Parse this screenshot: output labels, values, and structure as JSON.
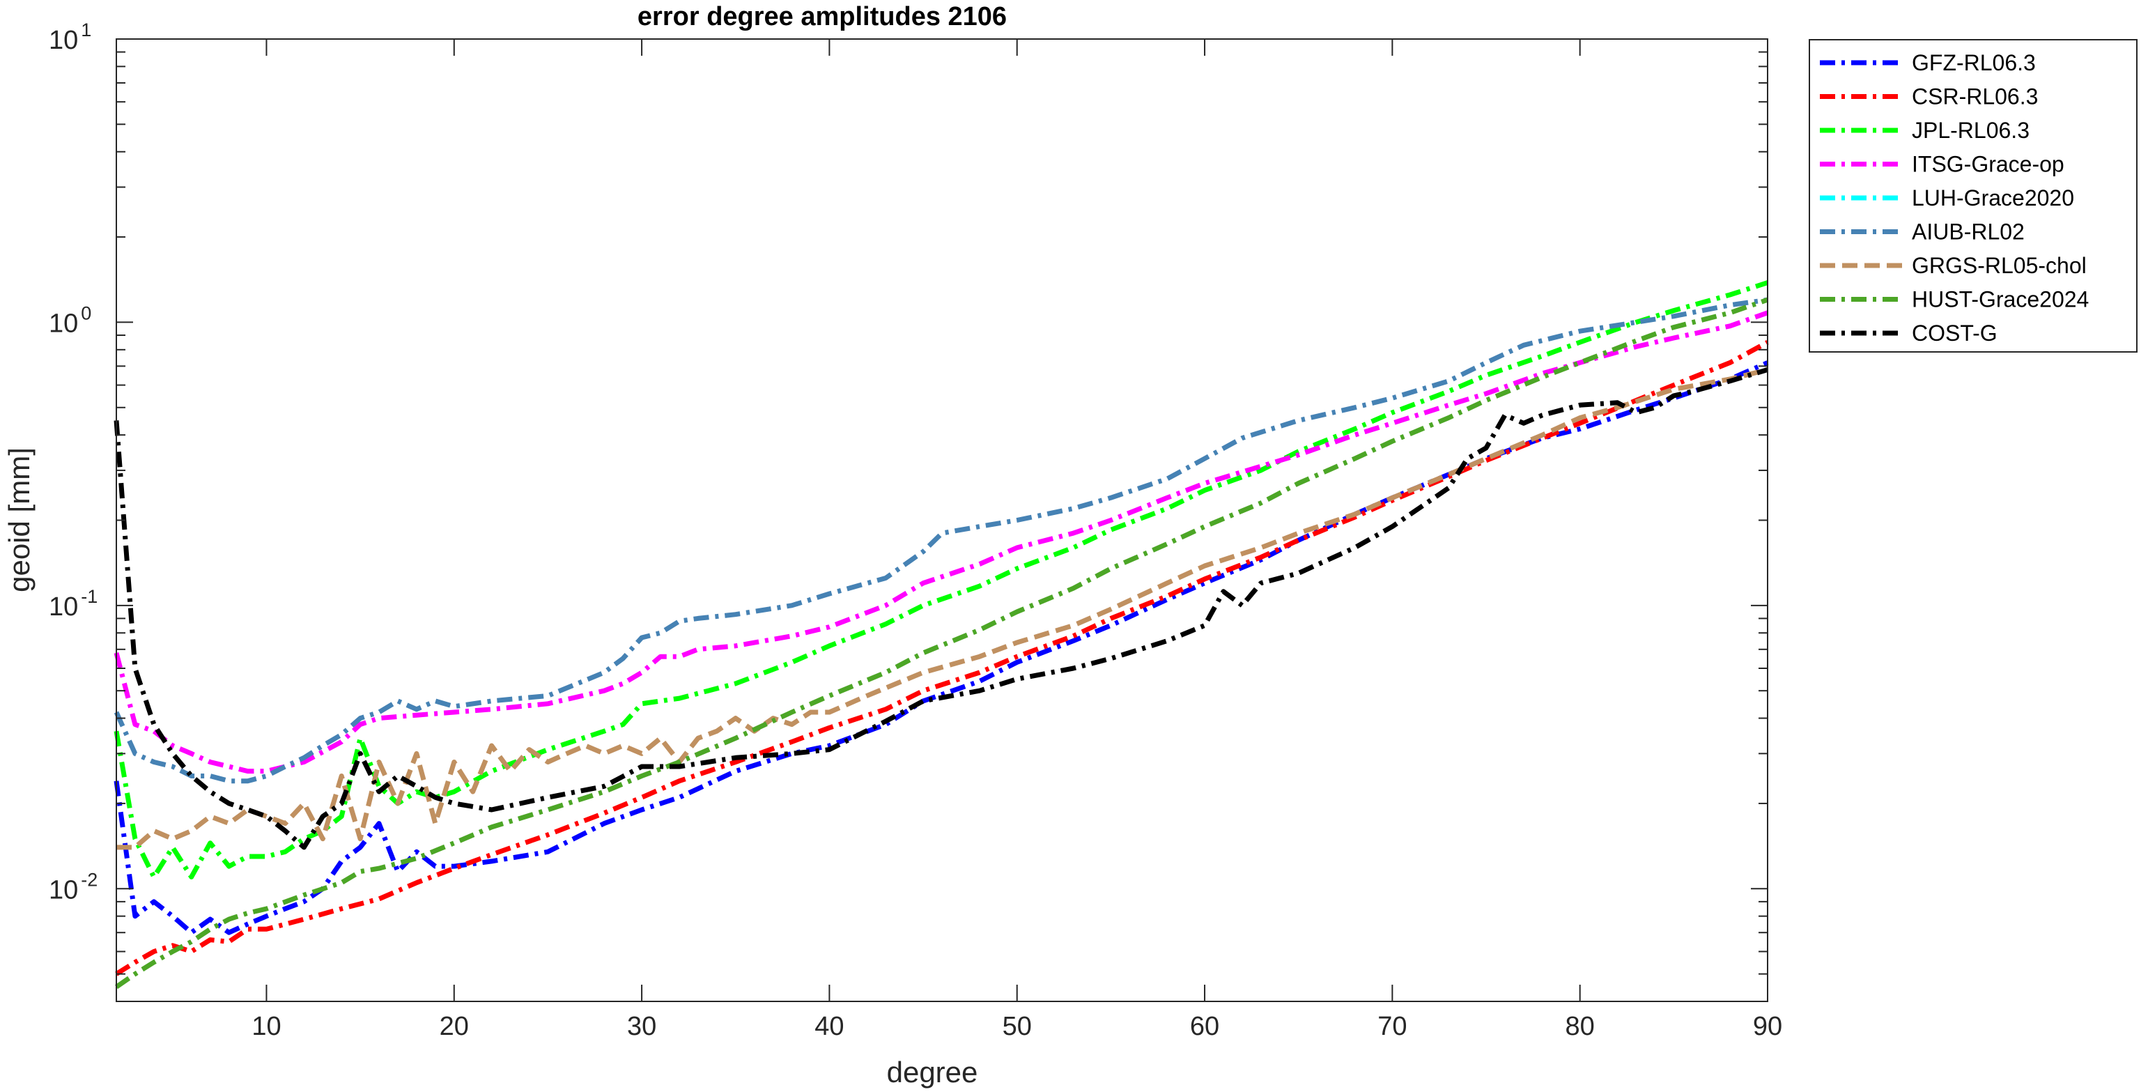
{
  "chart_data": {
    "type": "line",
    "title": "error degree amplitudes 2106",
    "xlabel": "degree",
    "ylabel": "geoid [mm]",
    "xlim": [
      2,
      90
    ],
    "ylim": [
      0.004,
      10
    ],
    "yscale": "log",
    "xticks": [
      10,
      20,
      30,
      40,
      50,
      60,
      70,
      80,
      90
    ],
    "yticks": [
      {
        "value": 0.01,
        "base": "10",
        "exp": "-2"
      },
      {
        "value": 0.1,
        "base": "10",
        "exp": "-1"
      },
      {
        "value": 1,
        "base": "10",
        "exp": "0"
      },
      {
        "value": 10,
        "base": "10",
        "exp": "1"
      }
    ],
    "grid": false,
    "legend_position": "outside-top-right",
    "series": [
      {
        "name": "GFZ-RL06.3",
        "color": "#0000ff",
        "dash": "dashdot",
        "x": [
          2,
          3,
          4,
          5,
          6,
          7,
          8,
          9,
          10,
          11,
          12,
          13,
          14,
          15,
          16,
          17,
          18,
          19,
          20,
          22,
          25,
          28,
          30,
          32,
          35,
          38,
          40,
          43,
          45,
          48,
          50,
          53,
          55,
          58,
          60,
          63,
          65,
          68,
          70,
          73,
          75,
          78,
          80,
          83,
          85,
          88,
          90
        ],
        "y": [
          0.024,
          0.008,
          0.009,
          0.008,
          0.007,
          0.0078,
          0.007,
          0.0075,
          0.008,
          0.0085,
          0.009,
          0.01,
          0.0125,
          0.014,
          0.017,
          0.0115,
          0.0135,
          0.012,
          0.012,
          0.0125,
          0.0135,
          0.017,
          0.019,
          0.021,
          0.026,
          0.03,
          0.032,
          0.038,
          0.046,
          0.054,
          0.063,
          0.075,
          0.085,
          0.105,
          0.12,
          0.145,
          0.17,
          0.21,
          0.24,
          0.29,
          0.33,
          0.39,
          0.42,
          0.49,
          0.54,
          0.63,
          0.72
        ]
      },
      {
        "name": "CSR-RL06.3",
        "color": "#ff0000",
        "dash": "dashdot",
        "x": [
          2,
          3,
          4,
          5,
          6,
          7,
          8,
          9,
          10,
          12,
          14,
          16,
          18,
          20,
          22,
          25,
          28,
          30,
          32,
          35,
          38,
          40,
          43,
          45,
          48,
          50,
          53,
          55,
          58,
          60,
          63,
          65,
          68,
          70,
          73,
          75,
          78,
          80,
          83,
          85,
          88,
          90
        ],
        "y": [
          0.005,
          0.0055,
          0.006,
          0.0063,
          0.006,
          0.0066,
          0.0065,
          0.0072,
          0.0072,
          0.0078,
          0.0085,
          0.0092,
          0.0105,
          0.0118,
          0.0132,
          0.0155,
          0.0185,
          0.021,
          0.024,
          0.028,
          0.033,
          0.037,
          0.043,
          0.05,
          0.058,
          0.066,
          0.078,
          0.09,
          0.108,
          0.124,
          0.148,
          0.17,
          0.205,
          0.235,
          0.285,
          0.325,
          0.39,
          0.44,
          0.53,
          0.6,
          0.72,
          0.85
        ]
      },
      {
        "name": "JPL-RL06.3",
        "color": "#00ff00",
        "dash": "dashdot",
        "x": [
          2,
          3,
          4,
          5,
          6,
          7,
          8,
          9,
          10,
          11,
          12,
          13,
          14,
          15,
          16,
          17,
          18,
          19,
          20,
          22,
          25,
          28,
          29,
          30,
          32,
          35,
          38,
          40,
          43,
          45,
          48,
          50,
          53,
          55,
          58,
          60,
          63,
          65,
          68,
          70,
          73,
          75,
          78,
          80,
          83,
          85,
          88,
          90
        ],
        "y": [
          0.036,
          0.015,
          0.011,
          0.014,
          0.011,
          0.0145,
          0.012,
          0.013,
          0.013,
          0.0135,
          0.015,
          0.016,
          0.018,
          0.034,
          0.023,
          0.02,
          0.022,
          0.021,
          0.022,
          0.026,
          0.031,
          0.036,
          0.038,
          0.045,
          0.047,
          0.053,
          0.063,
          0.072,
          0.086,
          0.1,
          0.117,
          0.135,
          0.16,
          0.185,
          0.22,
          0.255,
          0.3,
          0.35,
          0.42,
          0.48,
          0.57,
          0.65,
          0.76,
          0.85,
          1.0,
          1.1,
          1.25,
          1.38
        ]
      },
      {
        "name": "ITSG-Grace-op",
        "color": "#ff00ff",
        "dash": "dashdot",
        "x": [
          2,
          3,
          4,
          5,
          6,
          7,
          8,
          9,
          10,
          12,
          14,
          15,
          16,
          18,
          20,
          22,
          25,
          28,
          29,
          30,
          31,
          32,
          33,
          35,
          38,
          40,
          43,
          45,
          48,
          50,
          53,
          55,
          58,
          60,
          63,
          65,
          68,
          70,
          73,
          75,
          78,
          80,
          83,
          85,
          88,
          90
        ],
        "y": [
          0.068,
          0.038,
          0.036,
          0.032,
          0.03,
          0.028,
          0.027,
          0.026,
          0.026,
          0.028,
          0.033,
          0.038,
          0.04,
          0.041,
          0.042,
          0.043,
          0.045,
          0.05,
          0.053,
          0.058,
          0.066,
          0.066,
          0.07,
          0.072,
          0.078,
          0.084,
          0.1,
          0.12,
          0.14,
          0.16,
          0.18,
          0.2,
          0.24,
          0.27,
          0.31,
          0.34,
          0.4,
          0.44,
          0.51,
          0.56,
          0.66,
          0.72,
          0.82,
          0.88,
          0.97,
          1.08
        ]
      },
      {
        "name": "LUH-Grace2020",
        "color": "#00ffff",
        "dash": "dashdot",
        "x": [],
        "y": []
      },
      {
        "name": "AIUB-RL02",
        "color": "#4682b4",
        "dash": "dashdot",
        "x": [
          2,
          3,
          4,
          5,
          6,
          7,
          8,
          9,
          10,
          11,
          12,
          13,
          14,
          15,
          16,
          17,
          18,
          19,
          20,
          22,
          25,
          28,
          29,
          30,
          31,
          32,
          33,
          35,
          38,
          40,
          43,
          45,
          46,
          48,
          50,
          53,
          55,
          58,
          60,
          62,
          65,
          68,
          70,
          73,
          75,
          77,
          80,
          83,
          85,
          88,
          90
        ],
        "y": [
          0.042,
          0.03,
          0.028,
          0.027,
          0.025,
          0.025,
          0.024,
          0.024,
          0.025,
          0.027,
          0.029,
          0.032,
          0.035,
          0.04,
          0.042,
          0.046,
          0.043,
          0.046,
          0.044,
          0.046,
          0.048,
          0.058,
          0.065,
          0.077,
          0.08,
          0.088,
          0.09,
          0.093,
          0.1,
          0.11,
          0.125,
          0.155,
          0.18,
          0.19,
          0.2,
          0.22,
          0.24,
          0.28,
          0.33,
          0.39,
          0.45,
          0.5,
          0.54,
          0.62,
          0.72,
          0.83,
          0.93,
          1.0,
          1.05,
          1.15,
          1.2
        ]
      },
      {
        "name": "GRGS-RL05-chol",
        "color": "#c09060",
        "dash": "dash",
        "x": [
          2,
          3,
          4,
          5,
          6,
          7,
          8,
          9,
          10,
          11,
          12,
          13,
          14,
          15,
          16,
          17,
          18,
          19,
          20,
          21,
          22,
          23,
          24,
          25,
          26,
          27,
          28,
          29,
          30,
          31,
          32,
          33,
          34,
          35,
          36,
          37,
          38,
          39,
          40,
          42,
          45,
          48,
          50,
          53,
          55,
          58,
          60,
          63,
          65,
          68,
          70,
          73,
          75,
          78,
          80,
          82,
          85,
          88,
          90
        ],
        "y": [
          0.014,
          0.014,
          0.016,
          0.015,
          0.016,
          0.018,
          0.017,
          0.019,
          0.018,
          0.017,
          0.02,
          0.015,
          0.025,
          0.015,
          0.028,
          0.02,
          0.03,
          0.017,
          0.028,
          0.022,
          0.032,
          0.026,
          0.031,
          0.028,
          0.03,
          0.032,
          0.03,
          0.032,
          0.03,
          0.034,
          0.028,
          0.034,
          0.036,
          0.04,
          0.036,
          0.04,
          0.038,
          0.042,
          0.042,
          0.048,
          0.058,
          0.066,
          0.074,
          0.085,
          0.097,
          0.12,
          0.138,
          0.16,
          0.18,
          0.21,
          0.24,
          0.29,
          0.33,
          0.4,
          0.46,
          0.5,
          0.58,
          0.63,
          0.68
        ]
      },
      {
        "name": "HUST-Grace2024",
        "color": "#4ca626",
        "dash": "dashdot",
        "x": [
          2,
          3,
          4,
          5,
          6,
          7,
          8,
          9,
          10,
          12,
          14,
          15,
          16,
          18,
          20,
          22,
          25,
          28,
          30,
          32,
          35,
          38,
          40,
          43,
          45,
          48,
          50,
          53,
          55,
          58,
          60,
          63,
          65,
          68,
          70,
          73,
          75,
          78,
          80,
          83,
          85,
          88,
          90
        ],
        "y": [
          0.0045,
          0.005,
          0.0055,
          0.006,
          0.0065,
          0.0072,
          0.0078,
          0.0082,
          0.0085,
          0.0095,
          0.0105,
          0.0115,
          0.0118,
          0.0128,
          0.0145,
          0.0165,
          0.019,
          0.022,
          0.025,
          0.028,
          0.034,
          0.042,
          0.048,
          0.058,
          0.068,
          0.082,
          0.095,
          0.115,
          0.135,
          0.165,
          0.19,
          0.23,
          0.27,
          0.33,
          0.38,
          0.46,
          0.53,
          0.64,
          0.72,
          0.86,
          0.96,
          1.08,
          1.2
        ]
      },
      {
        "name": "COST-G",
        "color": "#000000",
        "dash": "dashdot",
        "x": [
          2,
          3,
          4,
          5,
          6,
          7,
          8,
          9,
          10,
          11,
          12,
          13,
          14,
          15,
          16,
          17,
          18,
          19,
          20,
          22,
          25,
          28,
          30,
          32,
          35,
          38,
          40,
          43,
          45,
          48,
          50,
          53,
          55,
          58,
          60,
          61,
          62,
          63,
          65,
          68,
          70,
          73,
          74,
          75,
          76,
          77,
          78,
          80,
          82,
          83,
          84,
          85,
          86,
          88,
          90
        ],
        "y": [
          0.45,
          0.06,
          0.038,
          0.03,
          0.025,
          0.022,
          0.02,
          0.019,
          0.018,
          0.016,
          0.014,
          0.018,
          0.02,
          0.03,
          0.022,
          0.025,
          0.023,
          0.021,
          0.02,
          0.019,
          0.021,
          0.023,
          0.027,
          0.027,
          0.029,
          0.03,
          0.031,
          0.039,
          0.046,
          0.05,
          0.055,
          0.06,
          0.065,
          0.075,
          0.085,
          0.112,
          0.1,
          0.12,
          0.13,
          0.16,
          0.19,
          0.26,
          0.33,
          0.36,
          0.47,
          0.44,
          0.47,
          0.51,
          0.52,
          0.48,
          0.5,
          0.55,
          0.57,
          0.62,
          0.68
        ]
      }
    ]
  }
}
